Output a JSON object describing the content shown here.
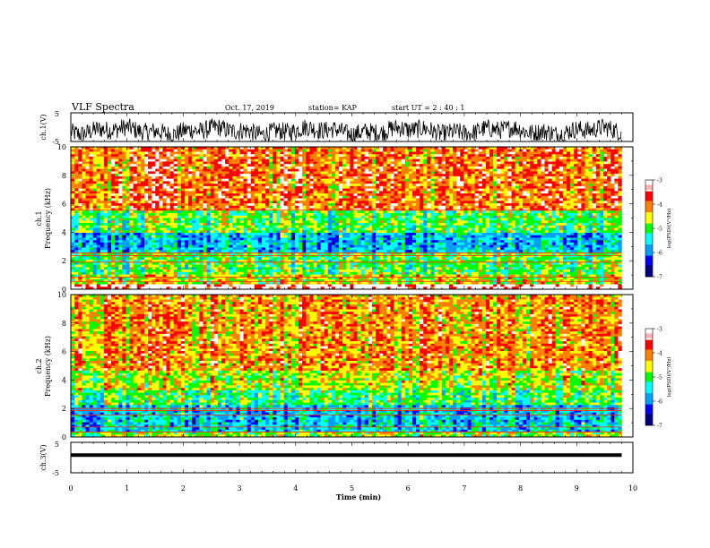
{
  "header": {
    "title": "VLF Spectra",
    "date": "Oct. 17, 2019",
    "station": "station= KAP",
    "start": "start UT = 2 : 40 : 1"
  },
  "chart_data": [
    {
      "type": "line",
      "name": "ch1-waveform",
      "ylabel": "ch.1(V)",
      "ylim": [
        -5,
        5
      ],
      "yticks": [
        "5",
        "-5"
      ],
      "xlim": [
        0,
        10
      ],
      "trace_extent": [
        0,
        9.8
      ]
    },
    {
      "type": "heatmap",
      "name": "ch1-spectrogram",
      "ylabel_top": "ch.1",
      "ylabel": "Frequency (kHz)",
      "ylim": [
        0,
        10
      ],
      "yticks": [
        "0",
        "2",
        "4",
        "6",
        "8",
        "10"
      ],
      "xlim": [
        0,
        10
      ],
      "data_extent": [
        0,
        9.8
      ],
      "colorbar": {
        "label": "log(PSD)(V²/Hz)",
        "ticks": [
          "-3",
          "-4",
          "-5",
          "-6",
          "-7"
        ],
        "range": [
          -7,
          -3
        ]
      }
    },
    {
      "type": "heatmap",
      "name": "ch2-spectrogram",
      "ylabel_top": "ch.2",
      "ylabel": "Frequency (kHz)",
      "ylim": [
        0,
        10
      ],
      "yticks": [
        "0",
        "2",
        "4",
        "6",
        "8",
        "10"
      ],
      "xlim": [
        0,
        10
      ],
      "data_extent": [
        0,
        9.8
      ],
      "colorbar": {
        "label": "log(PSD)(V²/Hz)",
        "ticks": [
          "-3",
          "-4",
          "-5",
          "-6",
          "-7"
        ],
        "range": [
          -7,
          -3
        ]
      }
    },
    {
      "type": "line",
      "name": "ch3-waveform",
      "ylabel": "ch.3(V)",
      "ylim": [
        -5,
        5
      ],
      "yticks": [
        "5",
        "-5"
      ],
      "xlim": [
        0,
        10
      ],
      "xlabel": "Time (min)",
      "xticks": [
        "0",
        "1",
        "2",
        "3",
        "4",
        "5",
        "6",
        "7",
        "8",
        "9",
        "10"
      ],
      "trace_extent": [
        0,
        9.8
      ]
    }
  ],
  "colors": {
    "scale": [
      "#000080",
      "#0000ff",
      "#00a0ff",
      "#00ffff",
      "#00ff00",
      "#ffff00",
      "#ff8000",
      "#ff0000",
      "#ffffff"
    ],
    "axes": "#000000"
  }
}
